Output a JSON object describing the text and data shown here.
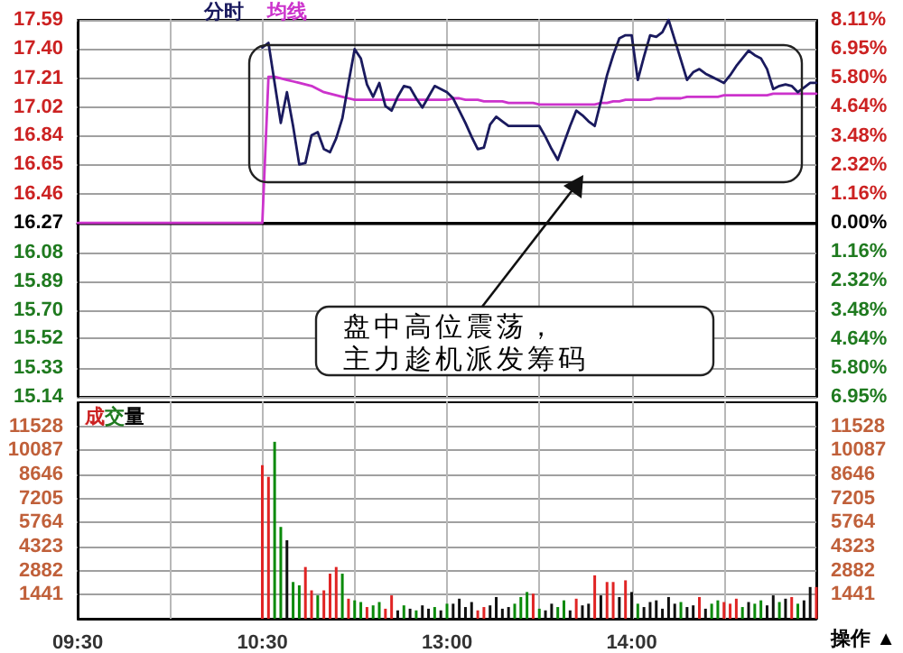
{
  "chart_data": [
    {
      "type": "line",
      "legend": "top left",
      "grid": true,
      "tick_labels": "y",
      "annotations": [
        "盘中高位震荡，",
        "主力趁机派发筹码"
      ],
      "categories": [
        null,
        null,
        null,
        null,
        null,
        null,
        null,
        null,
        null,
        null,
        null,
        null,
        null,
        null,
        null,
        null,
        null,
        null,
        null,
        null,
        null,
        null,
        null,
        null,
        null,
        null,
        null,
        null,
        null,
        null,
        null,
        null,
        null,
        null,
        null,
        null,
        null,
        null,
        null,
        null,
        null,
        null,
        null,
        null,
        null,
        null,
        null,
        null,
        null,
        null,
        null,
        null,
        null,
        null,
        null,
        null,
        null,
        null,
        null,
        null,
        null,
        null,
        null,
        null,
        null,
        null,
        null,
        null,
        null,
        null,
        null,
        null,
        null,
        null,
        null,
        null,
        null,
        null,
        null,
        null,
        null,
        null,
        null,
        null,
        null,
        null,
        null,
        null,
        null,
        null,
        null,
        null,
        null,
        null,
        null,
        null,
        null,
        null,
        null,
        null,
        null,
        null,
        null,
        null,
        null,
        null,
        null,
        null,
        null,
        null,
        null,
        null,
        null,
        null,
        null,
        null,
        null,
        null,
        null,
        null,
        null
      ],
      "ylim": [
        15.14,
        17.59
      ],
      "yticks": [
        {
          "value": 17.59,
          "label": "17.59"
        },
        {
          "value": 17.4,
          "label": "17.40"
        },
        {
          "value": 17.21,
          "label": "17.21"
        },
        {
          "value": 17.02,
          "label": "17.02"
        },
        {
          "value": 16.84,
          "label": "16.84"
        },
        {
          "value": 16.65,
          "label": "16.65"
        },
        {
          "value": 16.46,
          "label": "16.46"
        },
        {
          "value": 16.27,
          "label": "16.27"
        },
        {
          "value": 16.08,
          "label": "16.08"
        },
        {
          "value": 15.89,
          "label": "15.89"
        },
        {
          "value": 15.7,
          "label": "15.70"
        },
        {
          "value": 15.52,
          "label": "15.52"
        },
        {
          "value": 15.33,
          "label": "15.33"
        },
        {
          "value": 15.14,
          "label": "15.14"
        }
      ],
      "y2lim": [
        -6.95,
        8.11
      ],
      "y2ticks": [
        {
          "value": 8.11,
          "label": "8.11%"
        },
        {
          "value": 6.95,
          "label": "6.95%"
        },
        {
          "value": 5.8,
          "label": "5.80%"
        },
        {
          "value": 4.64,
          "label": "4.64%"
        },
        {
          "value": 3.48,
          "label": "3.48%"
        },
        {
          "value": 2.32,
          "label": "2.32%"
        },
        {
          "value": 1.16,
          "label": "1.16%"
        },
        {
          "value": 0,
          "label": "0.00%"
        },
        {
          "value": -1.16,
          "label": "1.16%"
        },
        {
          "value": -2.32,
          "label": "2.32%"
        },
        {
          "value": -3.48,
          "label": "3.48%"
        },
        {
          "value": -4.64,
          "label": "4.64%"
        },
        {
          "value": -5.8,
          "label": "5.80%"
        },
        {
          "value": -6.95,
          "label": "6.95%"
        }
      ],
      "ref_lines": [
        {
          "axis": "y",
          "value": 16.27,
          "color": "#000000"
        }
      ],
      "series": [
        {
          "name": "分时",
          "color": "#1a1a5e",
          "values": [
            null,
            null,
            null,
            null,
            null,
            null,
            null,
            null,
            null,
            null,
            null,
            null,
            null,
            null,
            null,
            null,
            null,
            null,
            null,
            null,
            null,
            null,
            null,
            null,
            null,
            null,
            null,
            null,
            null,
            null,
            17.41,
            17.44,
            17.18,
            16.92,
            17.12,
            16.9,
            16.65,
            16.66,
            16.84,
            16.86,
            16.75,
            16.73,
            16.82,
            16.95,
            17.18,
            17.4,
            17.34,
            17.17,
            17.09,
            17.18,
            17.03,
            17.0,
            17.09,
            17.16,
            17.15,
            17.08,
            17.02,
            17.09,
            17.16,
            17.14,
            17.12,
            17.08,
            17.0,
            16.92,
            16.83,
            16.75,
            16.76,
            16.91,
            16.96,
            16.93,
            16.9,
            16.9,
            16.9,
            16.9,
            16.9,
            16.9,
            16.83,
            16.75,
            16.68,
            16.79,
            16.9,
            17.0,
            16.97,
            16.93,
            16.9,
            17.06,
            17.23,
            17.36,
            17.47,
            17.49,
            17.49,
            17.2,
            17.35,
            17.49,
            17.48,
            17.51,
            17.59,
            17.46,
            17.33,
            17.2,
            17.25,
            17.27,
            17.24,
            17.22,
            17.2,
            17.18,
            17.23,
            17.29,
            17.34,
            17.39,
            17.36,
            17.34,
            17.27,
            17.14,
            17.16,
            17.17,
            17.16,
            17.12,
            17.15,
            17.18,
            17.18
          ]
        },
        {
          "name": "均线",
          "color": "#cc33cc",
          "values": [
            16.27,
            16.27,
            16.27,
            16.27,
            16.27,
            16.27,
            16.27,
            16.27,
            16.27,
            16.27,
            16.27,
            16.27,
            16.27,
            16.27,
            16.27,
            16.27,
            16.27,
            16.27,
            16.27,
            16.27,
            16.27,
            16.27,
            16.27,
            16.27,
            16.27,
            16.27,
            16.27,
            16.27,
            16.27,
            16.27,
            16.27,
            17.22,
            17.22,
            17.21,
            17.2,
            17.19,
            17.18,
            17.17,
            17.16,
            17.14,
            17.12,
            17.11,
            17.1,
            17.09,
            17.08,
            17.07,
            17.07,
            17.07,
            17.07,
            17.07,
            17.07,
            17.07,
            17.07,
            17.07,
            17.07,
            17.07,
            17.07,
            17.07,
            17.07,
            17.07,
            17.07,
            17.08,
            17.08,
            17.07,
            17.07,
            17.07,
            17.06,
            17.06,
            17.06,
            17.06,
            17.05,
            17.05,
            17.05,
            17.05,
            17.05,
            17.04,
            17.04,
            17.04,
            17.04,
            17.04,
            17.04,
            17.04,
            17.04,
            17.04,
            17.04,
            17.05,
            17.05,
            17.06,
            17.06,
            17.07,
            17.07,
            17.07,
            17.07,
            17.07,
            17.08,
            17.08,
            17.08,
            17.08,
            17.08,
            17.09,
            17.09,
            17.09,
            17.09,
            17.09,
            17.09,
            17.1,
            17.1,
            17.1,
            17.1,
            17.1,
            17.1,
            17.1,
            17.1,
            17.11,
            17.11,
            17.11,
            17.11,
            17.11,
            17.11,
            17.11,
            17.11
          ]
        }
      ]
    },
    {
      "type": "bar",
      "title": "成交量",
      "grid": true,
      "annotations": [
        "操作 ▲"
      ],
      "categories": [
        "09:30",
        null,
        null,
        null,
        null,
        null,
        null,
        null,
        null,
        null,
        null,
        null,
        null,
        null,
        null,
        null,
        null,
        null,
        null,
        null,
        null,
        null,
        null,
        null,
        null,
        null,
        null,
        null,
        null,
        null,
        "10:30",
        null,
        null,
        null,
        null,
        null,
        null,
        null,
        null,
        null,
        null,
        null,
        null,
        null,
        null,
        null,
        null,
        null,
        null,
        null,
        null,
        null,
        null,
        null,
        null,
        null,
        null,
        null,
        null,
        null,
        "13:00",
        null,
        null,
        null,
        null,
        null,
        null,
        null,
        null,
        null,
        null,
        null,
        null,
        null,
        null,
        null,
        null,
        null,
        null,
        null,
        null,
        null,
        null,
        null,
        null,
        null,
        null,
        null,
        null,
        null,
        "14:00",
        null,
        null,
        null,
        null,
        null,
        null,
        null,
        null,
        null,
        null,
        null,
        null,
        null,
        null,
        null,
        null,
        null,
        null,
        null,
        null,
        null,
        null,
        null,
        null,
        null,
        null,
        null,
        null,
        null,
        null
      ],
      "ylim": [
        0,
        12969
      ],
      "yticks": [
        1441,
        2882,
        4323,
        5764,
        7205,
        8646,
        10087,
        11528
      ],
      "y2lim": [
        0,
        12969
      ],
      "y2ticks": [
        1441,
        2882,
        4323,
        5764,
        7205,
        8646,
        10087,
        11528
      ],
      "values": [
        null,
        null,
        null,
        null,
        null,
        null,
        null,
        null,
        null,
        null,
        null,
        null,
        null,
        null,
        null,
        null,
        null,
        null,
        null,
        null,
        null,
        null,
        null,
        null,
        null,
        null,
        null,
        null,
        null,
        null,
        9200,
        8500,
        10600,
        5500,
        4700,
        2200,
        2000,
        3100,
        1700,
        1400,
        1700,
        2700,
        3100,
        2700,
        1200,
        1100,
        1000,
        700,
        800,
        1000,
        600,
        1400,
        500,
        800,
        600,
        500,
        800,
        600,
        700,
        500,
        900,
        900,
        1200,
        700,
        1000,
        500,
        700,
        800,
        1300,
        600,
        700,
        900,
        1300,
        1600,
        1500,
        600,
        500,
        900,
        700,
        1100,
        500,
        1200,
        800,
        900,
        2600,
        1400,
        2200,
        2200,
        1300,
        2300,
        1600,
        900,
        700,
        1000,
        1100,
        600,
        1300,
        900,
        1000,
        700,
        800,
        1300,
        600,
        900,
        1100,
        1000,
        900,
        1200,
        700,
        1000,
        900,
        1100,
        800,
        1400,
        1000,
        1200,
        1300,
        900,
        1100,
        1900,
        1900
      ],
      "colors": [
        null,
        null,
        null,
        null,
        null,
        null,
        null,
        null,
        null,
        null,
        null,
        null,
        null,
        null,
        null,
        null,
        null,
        null,
        null,
        null,
        null,
        null,
        null,
        null,
        null,
        null,
        null,
        null,
        null,
        null,
        "#e02424",
        "#e02424",
        "#0a8a0a",
        "#0a8a0a",
        "#101010",
        "#0a8a0a",
        "#0a8a0a",
        "#e02424",
        "#e02424",
        "#0a8a0a",
        "#e02424",
        "#e02424",
        "#e02424",
        "#0a8a0a",
        "#e02424",
        "#0a8a0a",
        "#0a8a0a",
        "#e02424",
        "#0a8a0a",
        "#0a8a0a",
        "#e02424",
        "#e02424",
        "#101010",
        "#0a8a0a",
        "#101010",
        "#0a8a0a",
        "#101010",
        "#101010",
        "#0a8a0a",
        "#101010",
        "#0a8a0a",
        "#101010",
        "#101010",
        "#101010",
        "#101010",
        "#e02424",
        "#e02424",
        "#101010",
        "#101010",
        "#101010",
        "#101010",
        "#0a8a0a",
        "#0a8a0a",
        "#0a8a0a",
        "#e02424",
        "#0a8a0a",
        "#101010",
        "#101010",
        "#0a8a0a",
        "#0a8a0a",
        "#101010",
        "#e02424",
        "#101010",
        "#101010",
        "#e02424",
        "#101010",
        "#e02424",
        "#e02424",
        "#101010",
        "#e02424",
        "#101010",
        "#0a8a0a",
        "#101010",
        "#101010",
        "#101010",
        "#101010",
        "#101010",
        "#101010",
        "#0a8a0a",
        "#101010",
        "#101010",
        "#e02424",
        "#101010",
        "#0a8a0a",
        "#0a8a0a",
        "#e02424",
        "#e02424",
        "#e02424",
        "#0a8a0a",
        "#101010",
        "#0a8a0a",
        "#0a8a0a",
        "#101010",
        "#101010",
        "#0a8a0a",
        "#101010",
        "#e02424",
        "#0a8a0a",
        "#101010",
        "#101010",
        "#e02424"
      ]
    }
  ]
}
